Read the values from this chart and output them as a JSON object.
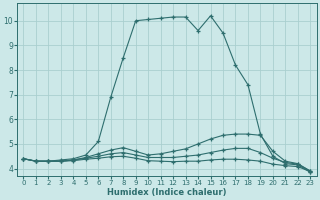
{
  "xlabel": "Humidex (Indice chaleur)",
  "bg_color": "#cce8e8",
  "line_color": "#2e6e6e",
  "grid_color": "#aacfcf",
  "xlim": [
    -0.5,
    23.5
  ],
  "ylim": [
    3.7,
    10.7
  ],
  "yticks": [
    4,
    5,
    6,
    7,
    8,
    9,
    10
  ],
  "xticks": [
    0,
    1,
    2,
    3,
    4,
    5,
    6,
    7,
    8,
    9,
    10,
    11,
    12,
    13,
    14,
    15,
    16,
    17,
    18,
    19,
    20,
    21,
    22,
    23
  ],
  "lines": [
    {
      "x": [
        0,
        1,
        2,
        3,
        4,
        5,
        6,
        7,
        8,
        9,
        10,
        11,
        12,
        13,
        14,
        15,
        16,
        17,
        18,
        19,
        20,
        21,
        22,
        23
      ],
      "y": [
        4.4,
        4.3,
        4.3,
        4.35,
        4.4,
        4.55,
        5.1,
        6.9,
        8.5,
        10.0,
        10.05,
        10.1,
        10.15,
        10.15,
        9.6,
        10.2,
        9.5,
        8.2,
        7.4,
        5.4,
        4.5,
        4.2,
        4.15,
        3.85
      ]
    },
    {
      "x": [
        0,
        1,
        2,
        3,
        4,
        5,
        6,
        7,
        8,
        9,
        10,
        11,
        12,
        13,
        14,
        15,
        16,
        17,
        18,
        19,
        20,
        21,
        22,
        23
      ],
      "y": [
        4.4,
        4.3,
        4.3,
        4.3,
        4.35,
        4.45,
        4.6,
        4.75,
        4.85,
        4.7,
        4.55,
        4.6,
        4.7,
        4.8,
        5.0,
        5.2,
        5.35,
        5.4,
        5.4,
        5.35,
        4.7,
        4.3,
        4.2,
        3.9
      ]
    },
    {
      "x": [
        0,
        1,
        2,
        3,
        4,
        5,
        6,
        7,
        8,
        9,
        10,
        11,
        12,
        13,
        14,
        15,
        16,
        17,
        18,
        19,
        20,
        21,
        22,
        23
      ],
      "y": [
        4.4,
        4.3,
        4.3,
        4.3,
        4.35,
        4.42,
        4.5,
        4.6,
        4.65,
        4.55,
        4.45,
        4.45,
        4.45,
        4.5,
        4.55,
        4.65,
        4.75,
        4.82,
        4.82,
        4.65,
        4.42,
        4.25,
        4.18,
        3.9
      ]
    },
    {
      "x": [
        0,
        1,
        2,
        3,
        4,
        5,
        6,
        7,
        8,
        9,
        10,
        11,
        12,
        13,
        14,
        15,
        16,
        17,
        18,
        19,
        20,
        21,
        22,
        23
      ],
      "y": [
        4.4,
        4.3,
        4.3,
        4.3,
        4.32,
        4.38,
        4.42,
        4.48,
        4.5,
        4.42,
        4.32,
        4.3,
        4.28,
        4.3,
        4.3,
        4.35,
        4.38,
        4.38,
        4.35,
        4.3,
        4.18,
        4.12,
        4.08,
        3.88
      ]
    }
  ]
}
